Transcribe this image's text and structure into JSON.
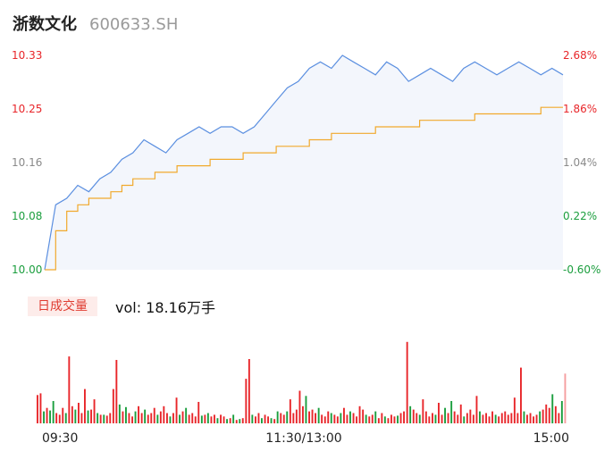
{
  "header": {
    "name": "浙数文化",
    "code": "600633.SH"
  },
  "volume_panel": {
    "tab_label": "日成交量",
    "vol_label": "vol: 18.16万手"
  },
  "colors": {
    "up": "#e8262a",
    "down": "#1b9e3e",
    "price_line": "#5b8fe0",
    "avg_line": "#f1a92c",
    "area_fill": "#f3f6fc"
  },
  "chart_data": [
    {
      "type": "line",
      "title": "",
      "y_ticks_left": [
        "10.33",
        "10.25",
        "10.16",
        "10.08",
        "10.00"
      ],
      "y_ticks_right": [
        "2.68%",
        "1.86%",
        "1.04%",
        "0.22%",
        "-0.60%"
      ],
      "ylim": [
        10.0,
        10.33
      ],
      "x_ticks": [
        "09:30",
        "11:30/13:00",
        "15:00"
      ],
      "series": [
        {
          "role": "price",
          "values": [
            10.0,
            10.1,
            10.11,
            10.13,
            10.12,
            10.14,
            10.15,
            10.17,
            10.18,
            10.2,
            10.19,
            10.18,
            10.2,
            10.21,
            10.22,
            10.21,
            10.22,
            10.22,
            10.21,
            10.22,
            10.24,
            10.26,
            10.28,
            10.29,
            10.31,
            10.32,
            10.31,
            10.33,
            10.32,
            10.31,
            10.3,
            10.32,
            10.31,
            10.29,
            10.3,
            10.31,
            10.3,
            10.29,
            10.31,
            10.32,
            10.31,
            10.3,
            10.31,
            10.32,
            10.31,
            10.3,
            10.31,
            10.3
          ]
        },
        {
          "role": "average",
          "values": [
            10.0,
            10.06,
            10.09,
            10.1,
            10.11,
            10.11,
            10.12,
            10.13,
            10.14,
            10.14,
            10.15,
            10.15,
            10.16,
            10.16,
            10.16,
            10.17,
            10.17,
            10.17,
            10.18,
            10.18,
            10.18,
            10.19,
            10.19,
            10.19,
            10.2,
            10.2,
            10.21,
            10.21,
            10.21,
            10.21,
            10.22,
            10.22,
            10.22,
            10.22,
            10.23,
            10.23,
            10.23,
            10.23,
            10.23,
            10.24,
            10.24,
            10.24,
            10.24,
            10.24,
            10.24,
            10.25,
            10.25,
            10.25
          ]
        }
      ]
    },
    {
      "type": "bar",
      "title": "",
      "bars": [
        {
          "v": 33,
          "d": "up"
        },
        {
          "v": 35,
          "d": "up"
        },
        {
          "v": 14,
          "d": "down"
        },
        {
          "v": 18,
          "d": "up"
        },
        {
          "v": 15,
          "d": "down"
        },
        {
          "v": 26,
          "d": "down"
        },
        {
          "v": 12,
          "d": "up"
        },
        {
          "v": 10,
          "d": "up"
        },
        {
          "v": 18,
          "d": "up"
        },
        {
          "v": 12,
          "d": "down"
        },
        {
          "v": 78,
          "d": "up"
        },
        {
          "v": 20,
          "d": "up"
        },
        {
          "v": 16,
          "d": "down"
        },
        {
          "v": 24,
          "d": "up"
        },
        {
          "v": 12,
          "d": "up"
        },
        {
          "v": 40,
          "d": "up"
        },
        {
          "v": 15,
          "d": "down"
        },
        {
          "v": 16,
          "d": "up"
        },
        {
          "v": 28,
          "d": "up"
        },
        {
          "v": 12,
          "d": "down"
        },
        {
          "v": 10,
          "d": "up"
        },
        {
          "v": 10,
          "d": "down"
        },
        {
          "v": 9,
          "d": "up"
        },
        {
          "v": 12,
          "d": "up"
        },
        {
          "v": 40,
          "d": "up"
        },
        {
          "v": 74,
          "d": "up"
        },
        {
          "v": 22,
          "d": "down"
        },
        {
          "v": 14,
          "d": "up"
        },
        {
          "v": 19,
          "d": "down"
        },
        {
          "v": 12,
          "d": "up"
        },
        {
          "v": 8,
          "d": "up"
        },
        {
          "v": 14,
          "d": "down"
        },
        {
          "v": 20,
          "d": "up"
        },
        {
          "v": 12,
          "d": "up"
        },
        {
          "v": 16,
          "d": "down"
        },
        {
          "v": 10,
          "d": "up"
        },
        {
          "v": 12,
          "d": "up"
        },
        {
          "v": 18,
          "d": "up"
        },
        {
          "v": 10,
          "d": "down"
        },
        {
          "v": 14,
          "d": "up"
        },
        {
          "v": 20,
          "d": "up"
        },
        {
          "v": 12,
          "d": "up"
        },
        {
          "v": 8,
          "d": "down"
        },
        {
          "v": 12,
          "d": "up"
        },
        {
          "v": 30,
          "d": "up"
        },
        {
          "v": 10,
          "d": "down"
        },
        {
          "v": 14,
          "d": "up"
        },
        {
          "v": 18,
          "d": "down"
        },
        {
          "v": 10,
          "d": "up"
        },
        {
          "v": 12,
          "d": "up"
        },
        {
          "v": 8,
          "d": "up"
        },
        {
          "v": 25,
          "d": "up"
        },
        {
          "v": 9,
          "d": "down"
        },
        {
          "v": 10,
          "d": "up"
        },
        {
          "v": 12,
          "d": "down"
        },
        {
          "v": 8,
          "d": "up"
        },
        {
          "v": 10,
          "d": "up"
        },
        {
          "v": 6,
          "d": "down"
        },
        {
          "v": 10,
          "d": "up"
        },
        {
          "v": 8,
          "d": "up"
        },
        {
          "v": 5,
          "d": "down"
        },
        {
          "v": 6,
          "d": "up"
        },
        {
          "v": 10,
          "d": "down"
        },
        {
          "v": 4,
          "d": "up"
        },
        {
          "v": 5,
          "d": "down"
        },
        {
          "v": 6,
          "d": "up"
        },
        {
          "v": 52,
          "d": "up"
        },
        {
          "v": 75,
          "d": "up"
        },
        {
          "v": 10,
          "d": "down"
        },
        {
          "v": 8,
          "d": "up"
        },
        {
          "v": 12,
          "d": "up"
        },
        {
          "v": 6,
          "d": "down"
        },
        {
          "v": 10,
          "d": "up"
        },
        {
          "v": 8,
          "d": "up"
        },
        {
          "v": 6,
          "d": "down"
        },
        {
          "v": 5,
          "d": "up"
        },
        {
          "v": 14,
          "d": "down"
        },
        {
          "v": 12,
          "d": "up"
        },
        {
          "v": 10,
          "d": "up"
        },
        {
          "v": 14,
          "d": "down"
        },
        {
          "v": 28,
          "d": "up"
        },
        {
          "v": 12,
          "d": "up"
        },
        {
          "v": 16,
          "d": "up"
        },
        {
          "v": 38,
          "d": "up"
        },
        {
          "v": 20,
          "d": "up"
        },
        {
          "v": 32,
          "d": "down"
        },
        {
          "v": 14,
          "d": "up"
        },
        {
          "v": 16,
          "d": "up"
        },
        {
          "v": 12,
          "d": "up"
        },
        {
          "v": 18,
          "d": "down"
        },
        {
          "v": 10,
          "d": "up"
        },
        {
          "v": 8,
          "d": "up"
        },
        {
          "v": 14,
          "d": "up"
        },
        {
          "v": 12,
          "d": "down"
        },
        {
          "v": 10,
          "d": "up"
        },
        {
          "v": 8,
          "d": "up"
        },
        {
          "v": 12,
          "d": "down"
        },
        {
          "v": 18,
          "d": "up"
        },
        {
          "v": 10,
          "d": "up"
        },
        {
          "v": 14,
          "d": "down"
        },
        {
          "v": 12,
          "d": "up"
        },
        {
          "v": 8,
          "d": "up"
        },
        {
          "v": 20,
          "d": "up"
        },
        {
          "v": 16,
          "d": "up"
        },
        {
          "v": 10,
          "d": "down"
        },
        {
          "v": 8,
          "d": "up"
        },
        {
          "v": 10,
          "d": "up"
        },
        {
          "v": 14,
          "d": "down"
        },
        {
          "v": 6,
          "d": "up"
        },
        {
          "v": 12,
          "d": "up"
        },
        {
          "v": 8,
          "d": "down"
        },
        {
          "v": 6,
          "d": "up"
        },
        {
          "v": 10,
          "d": "up"
        },
        {
          "v": 8,
          "d": "up"
        },
        {
          "v": 9,
          "d": "down"
        },
        {
          "v": 12,
          "d": "up"
        },
        {
          "v": 14,
          "d": "up"
        },
        {
          "v": 95,
          "d": "up"
        },
        {
          "v": 20,
          "d": "down"
        },
        {
          "v": 16,
          "d": "up"
        },
        {
          "v": 12,
          "d": "up"
        },
        {
          "v": 10,
          "d": "down"
        },
        {
          "v": 28,
          "d": "up"
        },
        {
          "v": 14,
          "d": "up"
        },
        {
          "v": 8,
          "d": "up"
        },
        {
          "v": 12,
          "d": "up"
        },
        {
          "v": 10,
          "d": "down"
        },
        {
          "v": 24,
          "d": "up"
        },
        {
          "v": 10,
          "d": "up"
        },
        {
          "v": 18,
          "d": "down"
        },
        {
          "v": 12,
          "d": "up"
        },
        {
          "v": 26,
          "d": "down"
        },
        {
          "v": 14,
          "d": "up"
        },
        {
          "v": 10,
          "d": "up"
        },
        {
          "v": 22,
          "d": "up"
        },
        {
          "v": 8,
          "d": "down"
        },
        {
          "v": 12,
          "d": "up"
        },
        {
          "v": 16,
          "d": "up"
        },
        {
          "v": 10,
          "d": "up"
        },
        {
          "v": 32,
          "d": "up"
        },
        {
          "v": 14,
          "d": "down"
        },
        {
          "v": 10,
          "d": "up"
        },
        {
          "v": 12,
          "d": "up"
        },
        {
          "v": 8,
          "d": "up"
        },
        {
          "v": 14,
          "d": "up"
        },
        {
          "v": 10,
          "d": "down"
        },
        {
          "v": 8,
          "d": "up"
        },
        {
          "v": 12,
          "d": "up"
        },
        {
          "v": 14,
          "d": "up"
        },
        {
          "v": 10,
          "d": "up"
        },
        {
          "v": 12,
          "d": "up"
        },
        {
          "v": 30,
          "d": "up"
        },
        {
          "v": 12,
          "d": "up"
        },
        {
          "v": 65,
          "d": "up"
        },
        {
          "v": 14,
          "d": "down"
        },
        {
          "v": 10,
          "d": "up"
        },
        {
          "v": 12,
          "d": "up"
        },
        {
          "v": 8,
          "d": "up"
        },
        {
          "v": 10,
          "d": "up"
        },
        {
          "v": 14,
          "d": "down"
        },
        {
          "v": 16,
          "d": "up"
        },
        {
          "v": 22,
          "d": "up"
        },
        {
          "v": 18,
          "d": "up"
        },
        {
          "v": 34,
          "d": "down"
        },
        {
          "v": 20,
          "d": "up"
        },
        {
          "v": 12,
          "d": "up"
        },
        {
          "v": 26,
          "d": "down"
        },
        {
          "v": 58,
          "d": "up"
        }
      ]
    }
  ]
}
